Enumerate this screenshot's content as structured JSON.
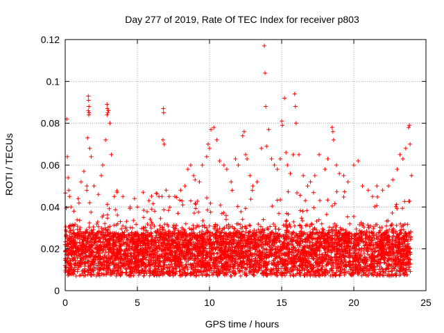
{
  "chart_data": {
    "type": "scatter",
    "title": "Day 277 of 2019, Rate Of TEC Index for receiver p803",
    "xlabel": "GPS time / hours",
    "ylabel": "ROTI / TECUs",
    "xlim": [
      0,
      25
    ],
    "ylim": [
      0,
      0.12
    ],
    "grid": true,
    "marker": "+",
    "colors": {
      "points": "#ff0000",
      "grid": "#a0a0a0",
      "axes": "#000000"
    },
    "x_ticks": [
      {
        "value": 0,
        "label": "0"
      },
      {
        "value": 5,
        "label": "5"
      },
      {
        "value": 10,
        "label": "10"
      },
      {
        "value": 15,
        "label": "15"
      },
      {
        "value": 20,
        "label": "20"
      },
      {
        "value": 25,
        "label": "25"
      }
    ],
    "y_ticks": [
      {
        "value": 0,
        "label": "0"
      },
      {
        "value": 0.02,
        "label": "0.02"
      },
      {
        "value": 0.04,
        "label": "0.04"
      },
      {
        "value": 0.06,
        "label": "0.06"
      },
      {
        "value": 0.08,
        "label": "0.08"
      },
      {
        "value": 0.1,
        "label": "0.1"
      },
      {
        "value": 0.12,
        "label": "0.12"
      }
    ],
    "series": [
      {
        "name": "ROTI",
        "points": [
          [
            0.1,
            0.082
          ],
          [
            0.15,
            0.064
          ],
          [
            0.2,
            0.054
          ],
          [
            0.25,
            0.048
          ],
          [
            0.3,
            0.045
          ],
          [
            0.4,
            0.04
          ],
          [
            0.6,
            0.038
          ],
          [
            0.9,
            0.044
          ],
          [
            1.1,
            0.052
          ],
          [
            1.3,
            0.057
          ],
          [
            1.5,
            0.05
          ],
          [
            1.6,
            0.093
          ],
          [
            1.62,
            0.091
          ],
          [
            1.64,
            0.088
          ],
          [
            1.6,
            0.086
          ],
          [
            1.65,
            0.085
          ],
          [
            1.63,
            0.084
          ],
          [
            1.55,
            0.073
          ],
          [
            1.7,
            0.068
          ],
          [
            1.8,
            0.064
          ],
          [
            2.0,
            0.05
          ],
          [
            2.3,
            0.046
          ],
          [
            2.5,
            0.055
          ],
          [
            2.6,
            0.06
          ],
          [
            2.8,
            0.072
          ],
          [
            2.9,
            0.089
          ],
          [
            2.92,
            0.087
          ],
          [
            2.95,
            0.085
          ],
          [
            2.9,
            0.084
          ],
          [
            3.0,
            0.086
          ],
          [
            3.1,
            0.08
          ],
          [
            3.2,
            0.065
          ],
          [
            3.4,
            0.045
          ],
          [
            3.6,
            0.047
          ],
          [
            4.0,
            0.045
          ],
          [
            4.5,
            0.04
          ],
          [
            4.8,
            0.044
          ],
          [
            5.0,
            0.04
          ],
          [
            5.4,
            0.047
          ],
          [
            5.8,
            0.043
          ],
          [
            6.2,
            0.038
          ],
          [
            6.5,
            0.045
          ],
          [
            6.8,
            0.087
          ],
          [
            6.82,
            0.085
          ],
          [
            6.78,
            0.072
          ],
          [
            6.85,
            0.07
          ],
          [
            7.0,
            0.048
          ],
          [
            7.2,
            0.045
          ],
          [
            7.6,
            0.045
          ],
          [
            8.0,
            0.048
          ],
          [
            8.3,
            0.05
          ],
          [
            8.5,
            0.058
          ],
          [
            8.7,
            0.06
          ],
          [
            8.9,
            0.055
          ],
          [
            9.0,
            0.053
          ],
          [
            9.3,
            0.052
          ],
          [
            9.5,
            0.06
          ],
          [
            9.8,
            0.064
          ],
          [
            9.9,
            0.07
          ],
          [
            10.0,
            0.068
          ],
          [
            10.1,
            0.077
          ],
          [
            10.3,
            0.078
          ],
          [
            10.5,
            0.072
          ],
          [
            10.7,
            0.062
          ],
          [
            11.0,
            0.06
          ],
          [
            11.2,
            0.058
          ],
          [
            11.5,
            0.052
          ],
          [
            11.8,
            0.063
          ],
          [
            12.0,
            0.06
          ],
          [
            12.3,
            0.074
          ],
          [
            12.4,
            0.076
          ],
          [
            12.5,
            0.065
          ],
          [
            12.6,
            0.063
          ],
          [
            12.8,
            0.055
          ],
          [
            13.0,
            0.05
          ],
          [
            13.3,
            0.052
          ],
          [
            13.6,
            0.068
          ],
          [
            13.8,
            0.117
          ],
          [
            13.85,
            0.104
          ],
          [
            13.9,
            0.088
          ],
          [
            13.95,
            0.069
          ],
          [
            14.1,
            0.077
          ],
          [
            14.3,
            0.063
          ],
          [
            14.5,
            0.06
          ],
          [
            14.7,
            0.058
          ],
          [
            14.9,
            0.063
          ],
          [
            15.0,
            0.081
          ],
          [
            15.05,
            0.079
          ],
          [
            15.2,
            0.092
          ],
          [
            15.3,
            0.066
          ],
          [
            15.4,
            0.06
          ],
          [
            15.6,
            0.056
          ],
          [
            15.8,
            0.065
          ],
          [
            15.9,
            0.094
          ],
          [
            15.95,
            0.088
          ],
          [
            16.0,
            0.08
          ],
          [
            16.2,
            0.065
          ],
          [
            16.5,
            0.055
          ],
          [
            16.8,
            0.05
          ],
          [
            17.0,
            0.052
          ],
          [
            17.3,
            0.055
          ],
          [
            17.6,
            0.065
          ],
          [
            18.0,
            0.058
          ],
          [
            18.2,
            0.063
          ],
          [
            18.5,
            0.078
          ],
          [
            18.55,
            0.076
          ],
          [
            18.6,
            0.072
          ],
          [
            18.8,
            0.06
          ],
          [
            19.0,
            0.056
          ],
          [
            19.3,
            0.055
          ],
          [
            19.6,
            0.052
          ],
          [
            20.0,
            0.06
          ],
          [
            20.3,
            0.062
          ],
          [
            20.6,
            0.05
          ],
          [
            21.0,
            0.048
          ],
          [
            21.3,
            0.045
          ],
          [
            21.6,
            0.05
          ],
          [
            22.0,
            0.048
          ],
          [
            22.4,
            0.05
          ],
          [
            22.7,
            0.053
          ],
          [
            23.0,
            0.058
          ],
          [
            23.2,
            0.065
          ],
          [
            23.4,
            0.063
          ],
          [
            23.6,
            0.068
          ],
          [
            23.8,
            0.078
          ],
          [
            23.85,
            0.079
          ],
          [
            23.9,
            0.07
          ],
          [
            24.0,
            0.055
          ]
        ]
      }
    ]
  }
}
